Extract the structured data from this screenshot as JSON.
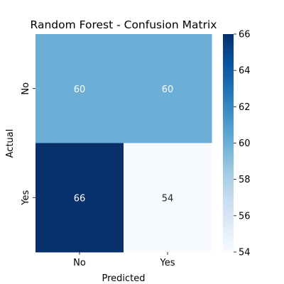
{
  "chart_data": {
    "type": "heatmap",
    "title": "Random Forest - Confusion Matrix",
    "xlabel": "Predicted",
    "ylabel": "Actual",
    "x_categories": [
      "No",
      "Yes"
    ],
    "y_categories": [
      "No",
      "Yes"
    ],
    "values": [
      [
        60,
        60
      ],
      [
        66,
        54
      ]
    ],
    "colormap": "Blues",
    "color_range": [
      54,
      66
    ],
    "colorbar_ticks": [
      54,
      56,
      58,
      60,
      62,
      64,
      66
    ],
    "annotate_cells": true
  }
}
